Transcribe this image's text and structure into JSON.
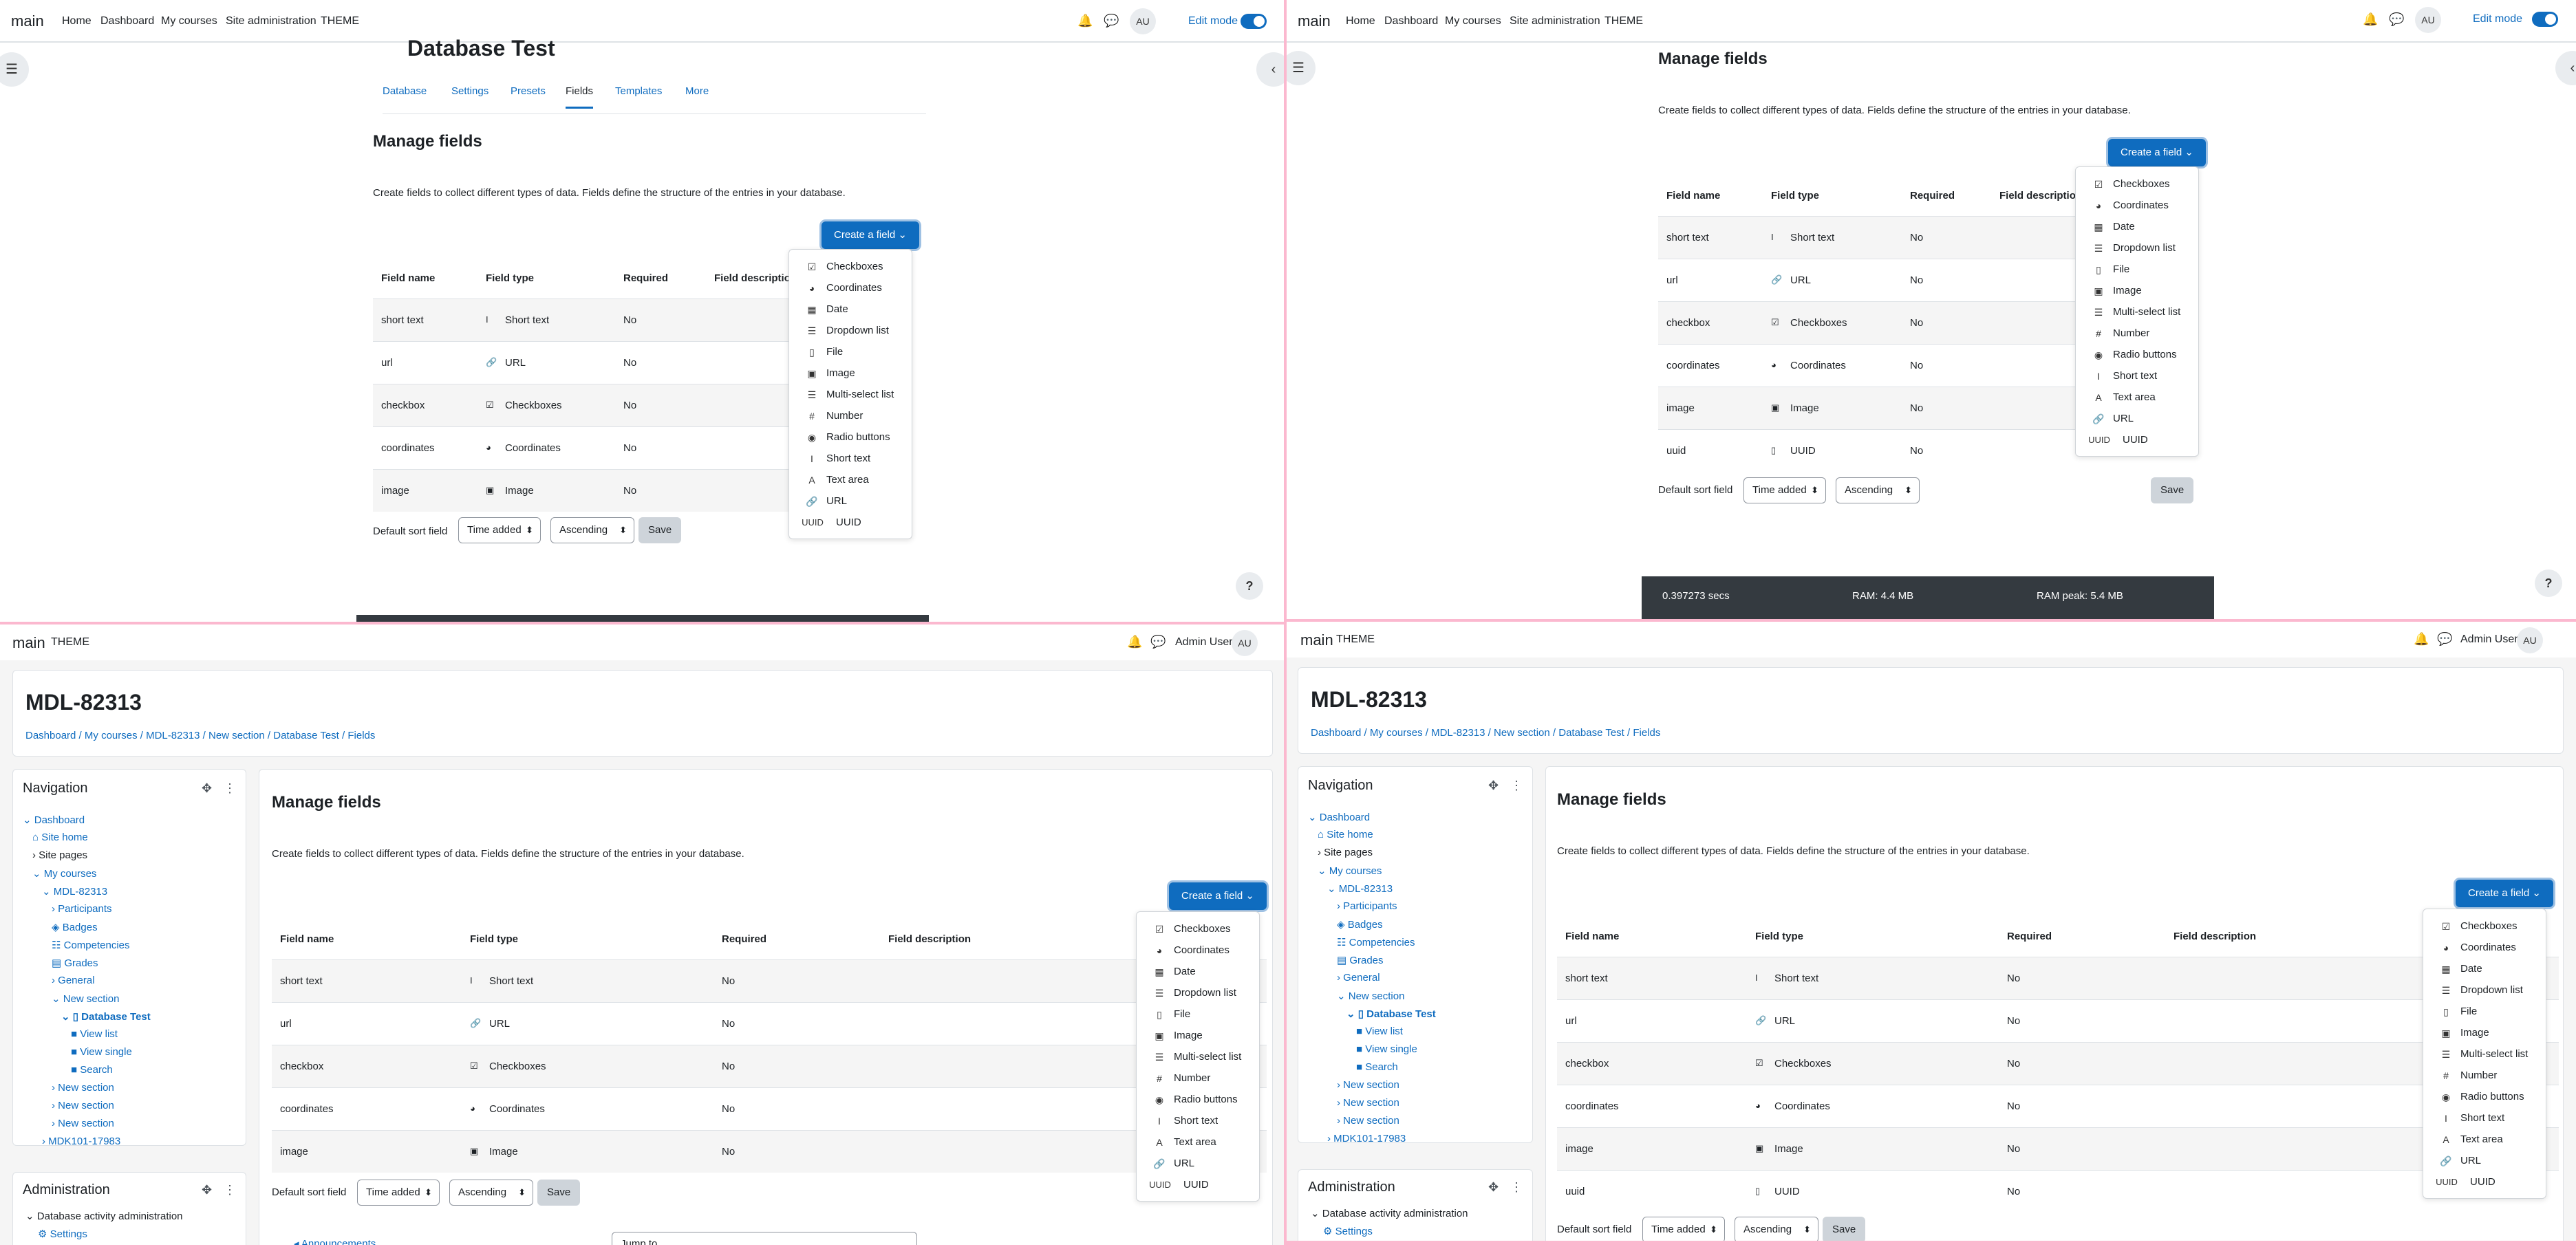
{
  "header": {
    "site": "main",
    "nav": [
      "Home",
      "Dashboard",
      "My courses",
      "Site administration",
      "THEME"
    ],
    "avatar": "AU",
    "edit_mode": "Edit mode",
    "user": "Admin User"
  },
  "activity": {
    "title": "Database Test",
    "tabs": [
      "Database",
      "Settings",
      "Presets",
      "Fields",
      "Templates",
      "More"
    ],
    "active_tab": "Fields"
  },
  "page": {
    "heading": "Manage fields",
    "intro": "Create fields to collect different types of data. Fields define the structure of the entries in your database.",
    "create_button": "Create a field",
    "course": "MDL-82313"
  },
  "table": {
    "headers": [
      "Field name",
      "Field type",
      "Required",
      "Field description"
    ],
    "rows": [
      {
        "name": "short text",
        "type": "Short text",
        "icon": "text-cursor-icon",
        "glyph": "I",
        "required": "No"
      },
      {
        "name": "url",
        "type": "URL",
        "icon": "link-icon",
        "glyph": "🔗",
        "required": "No"
      },
      {
        "name": "checkbox",
        "type": "Checkboxes",
        "icon": "checkbox-icon",
        "glyph": "☑",
        "required": "No"
      },
      {
        "name": "coordinates",
        "type": "Coordinates",
        "icon": "globe-icon",
        "glyph": "◕",
        "required": "No"
      },
      {
        "name": "image",
        "type": "Image",
        "icon": "image-icon",
        "glyph": "▣",
        "required": "No"
      },
      {
        "name": "uuid",
        "type": "UUID",
        "icon": "uuid-icon",
        "glyph": "▯",
        "required": "No"
      }
    ]
  },
  "menu": [
    {
      "label": "Checkboxes",
      "glyph": "☑"
    },
    {
      "label": "Coordinates",
      "glyph": "◕"
    },
    {
      "label": "Date",
      "glyph": "▦"
    },
    {
      "label": "Dropdown list",
      "glyph": "☰"
    },
    {
      "label": "File",
      "glyph": "▯"
    },
    {
      "label": "Image",
      "glyph": "▣"
    },
    {
      "label": "Multi-select list",
      "glyph": "☰"
    },
    {
      "label": "Number",
      "glyph": "#"
    },
    {
      "label": "Radio buttons",
      "glyph": "◉"
    },
    {
      "label": "Short text",
      "glyph": "I"
    },
    {
      "label": "Text area",
      "glyph": "A"
    },
    {
      "label": "URL",
      "glyph": "🔗"
    },
    {
      "label": "UUID",
      "glyph": "UUID"
    }
  ],
  "sort": {
    "label": "Default sort field",
    "field": "Time added",
    "order": "Ascending",
    "save": "Save"
  },
  "perf": {
    "time": "0.397273 secs",
    "ram": "RAM: 4.4 MB",
    "peak": "RAM peak: 5.4 MB"
  },
  "breadcrumb": [
    "Dashboard",
    "My courses",
    "MDL-82313",
    "New section",
    "Database Test",
    "Fields"
  ],
  "navigation": {
    "title": "Navigation",
    "items": [
      "Dashboard",
      "Site home",
      "Site pages",
      "My courses",
      "MDL-82313",
      "Participants",
      "Badges",
      "Competencies",
      "Grades",
      "General",
      "New section",
      "Database Test",
      "View list",
      "View single",
      "Search",
      "New section",
      "New section",
      "New section",
      "MDK101-17983"
    ]
  },
  "administration": {
    "title": "Administration",
    "items": [
      "Database activity administration",
      "Settings"
    ]
  },
  "footer": {
    "announcements": "◂ Announcements",
    "jump": "Jump to..."
  }
}
